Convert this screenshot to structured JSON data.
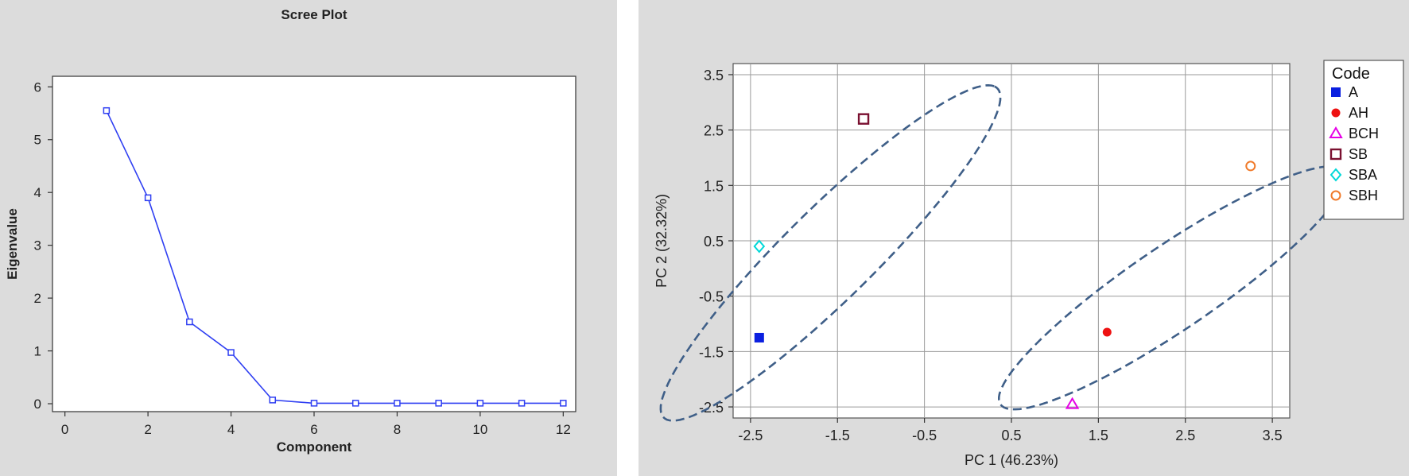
{
  "chart_data": [
    {
      "type": "line",
      "title": "Scree Plot",
      "xlabel": "Component",
      "ylabel": "Eigenvalue",
      "xlim": [
        -0.3,
        12.3
      ],
      "ylim": [
        -0.15,
        6.2
      ],
      "xticks": [
        0,
        2,
        4,
        6,
        8,
        10,
        12
      ],
      "yticks": [
        0,
        1,
        2,
        3,
        4,
        5,
        6
      ],
      "grid": false,
      "series": [
        {
          "color": "#2f3ff2",
          "x": [
            1,
            2,
            3,
            4,
            5,
            6,
            7,
            8,
            9,
            10,
            11,
            12
          ],
          "y": [
            5.55,
            3.9,
            1.55,
            0.97,
            0.07,
            0.01,
            0.01,
            0.01,
            0.01,
            0.01,
            0.01,
            0.01
          ]
        }
      ]
    },
    {
      "type": "scatter",
      "title": "",
      "xlabel": "PC 1 (46.23%)",
      "ylabel": "PC 2 (32.32%)",
      "xlim": [
        -2.7,
        3.7
      ],
      "ylim": [
        -2.7,
        3.7
      ],
      "xticks": [
        -2.5,
        -1.5,
        -0.5,
        0.5,
        1.5,
        2.5,
        3.5
      ],
      "yticks": [
        -2.5,
        -1.5,
        -0.5,
        0.5,
        1.5,
        2.5,
        3.5
      ],
      "grid": true,
      "legend": {
        "title": "Code",
        "placement": "outside-right"
      },
      "points": [
        {
          "label": "A",
          "x": -2.4,
          "y": -1.25,
          "marker": "filled-square",
          "color": "#0a1fe0"
        },
        {
          "label": "AH",
          "x": 1.6,
          "y": -1.15,
          "marker": "filled-circle",
          "color": "#ee1111"
        },
        {
          "label": "BCH",
          "x": 1.2,
          "y": -2.45,
          "marker": "open-triangle",
          "color": "#e600e6"
        },
        {
          "label": "SB",
          "x": -1.2,
          "y": 2.7,
          "marker": "open-square",
          "color": "#7a1030"
        },
        {
          "label": "SBA",
          "x": -2.4,
          "y": 0.4,
          "marker": "open-diamond",
          "color": "#00d8d8"
        },
        {
          "label": "SBH",
          "x": 3.25,
          "y": 1.85,
          "marker": "open-circle",
          "color": "#f07a2a"
        }
      ],
      "ellipses": [
        {
          "center": [
            -1.58,
            0.28
          ],
          "semi_axes": [
            3.55,
            0.62
          ],
          "angle_deg": 58,
          "style": "dashed",
          "color": "#3f5f88"
        },
        {
          "center": [
            2.35,
            -0.35
          ],
          "semi_axes": [
            2.9,
            0.62
          ],
          "angle_deg": 48,
          "style": "dashed",
          "color": "#3f5f88"
        }
      ]
    }
  ]
}
